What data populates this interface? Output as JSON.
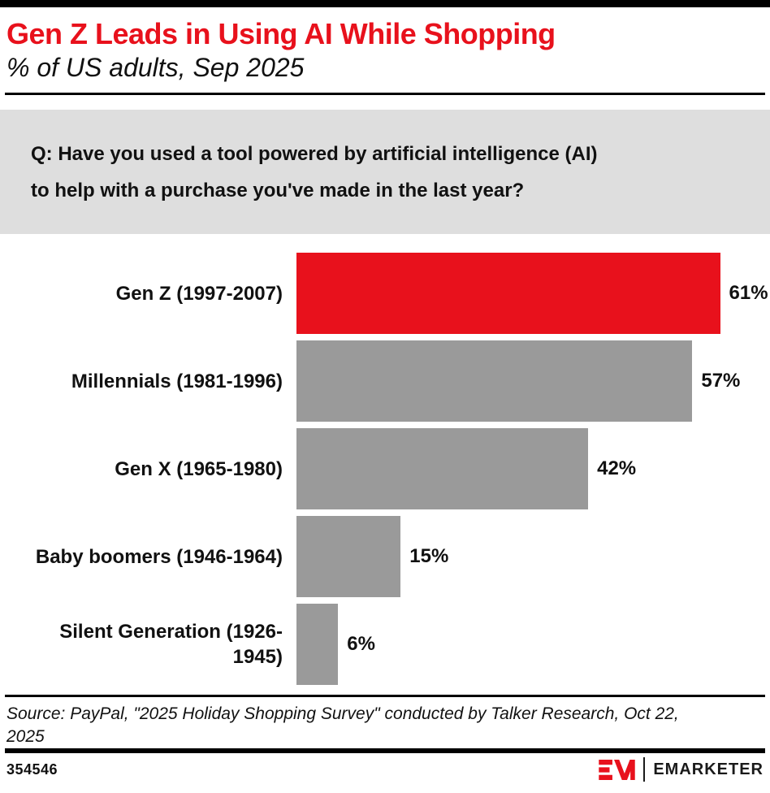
{
  "question": {
    "lines": [
      "Q: Have you used a tool powered by artificial intelligence (AI)",
      "to help with a purchase you've made in the last year?"
    ]
  },
  "chart_data": {
    "type": "bar",
    "orientation": "horizontal",
    "title": "Gen Z Leads in Using AI While Shopping",
    "subtitle": "% of US adults, Sep 2025",
    "categories": [
      "Gen Z (1997-2007)",
      "Millennials (1981-1996)",
      "Gen X (1965-1980)",
      "Baby boomers (1946-1964)",
      "Silent Generation (1926-1945)"
    ],
    "values": [
      61,
      57,
      42,
      15,
      6
    ],
    "value_labels": [
      "61%",
      "57%",
      "42%",
      "15%",
      "6%"
    ],
    "unit": "%",
    "xlim": [
      0,
      61
    ],
    "grid": false,
    "legend": false,
    "highlight_index": 0,
    "colors": {
      "highlight": "#E8111C",
      "default": "#9A9A9A"
    }
  },
  "source": {
    "lines": [
      "Source: PayPal, \"2025 Holiday Shopping Survey\" conducted by Talker Research, Oct 22,",
      "2025"
    ]
  },
  "footer": {
    "chart_id": "354546",
    "brand": "EMARKETER"
  }
}
